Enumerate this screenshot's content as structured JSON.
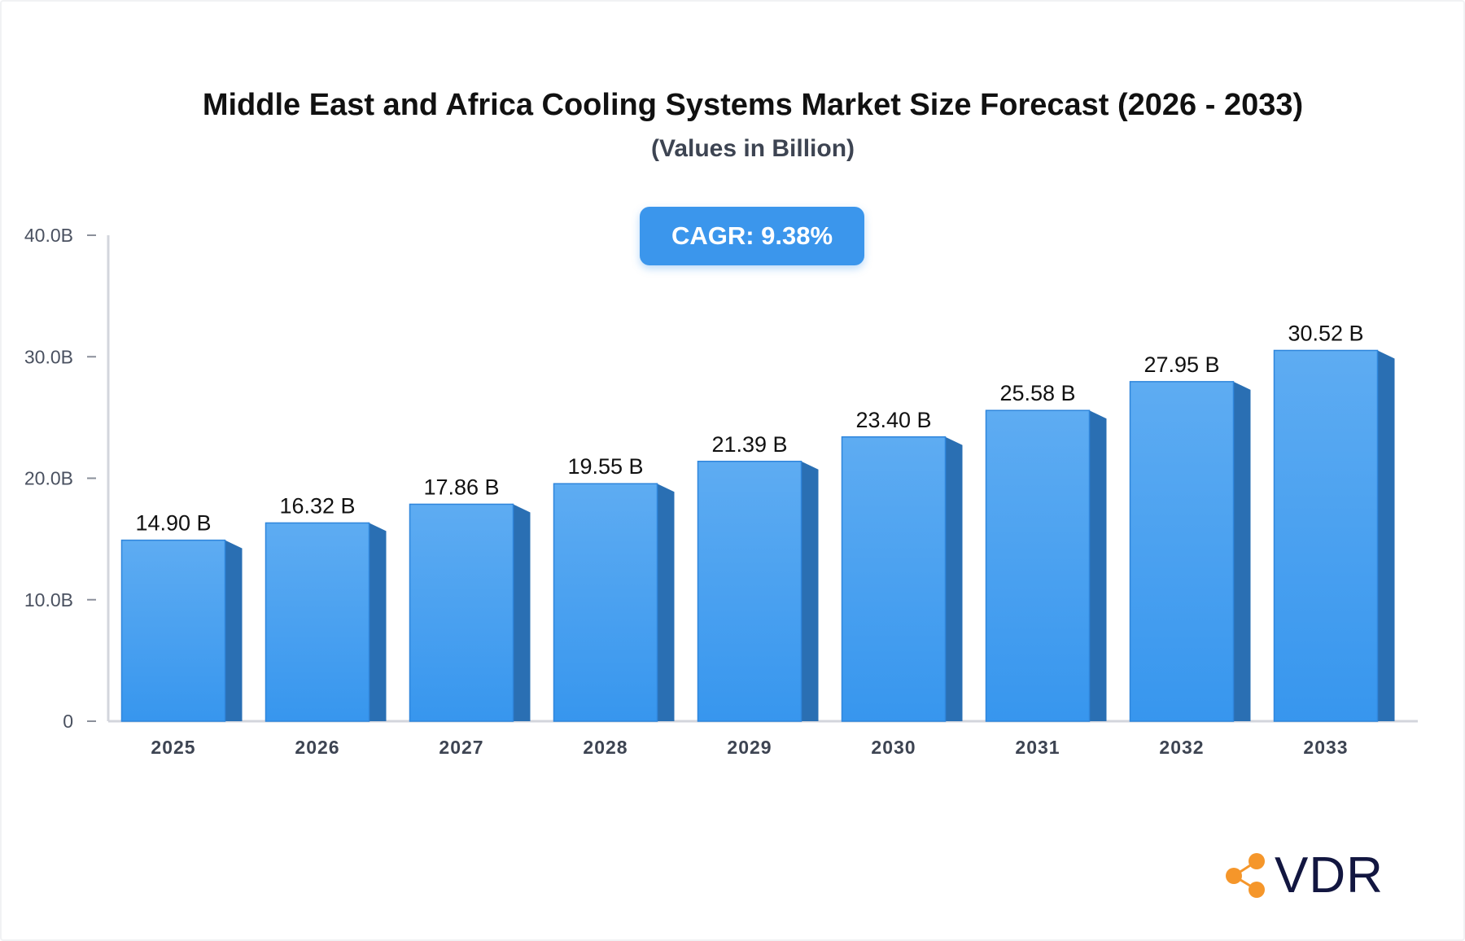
{
  "chart_data": {
    "type": "bar",
    "title": "Middle East and Africa Cooling Systems Market Size Forecast (2026 - 2033)",
    "subtitle": "(Values in Billion)",
    "categories": [
      "2025",
      "2026",
      "2027",
      "2028",
      "2029",
      "2030",
      "2031",
      "2032",
      "2033"
    ],
    "values": [
      14.9,
      16.32,
      17.86,
      19.55,
      21.39,
      23.4,
      25.58,
      27.95,
      30.52
    ],
    "data_labels": [
      "14.90 B",
      "16.32 B",
      "17.86 B",
      "19.55 B",
      "21.39 B",
      "23.40 B",
      "25.58 B",
      "27.95 B",
      "30.52 B"
    ],
    "ylim": [
      0,
      40
    ],
    "yticks": [
      0,
      10,
      20,
      30,
      40
    ],
    "ytick_labels": [
      "0",
      "10.0B",
      "20.0B",
      "30.0B",
      "40.0B"
    ],
    "grid": false,
    "bar_color": "#3b96ec",
    "bar_side_color": "#2a6fb3"
  },
  "cagr_badge": "CAGR: 9.38%",
  "logo": {
    "text": "VDR",
    "icon": "share-nodes-icon",
    "icon_color": "#f5962a",
    "text_color": "#121640"
  }
}
